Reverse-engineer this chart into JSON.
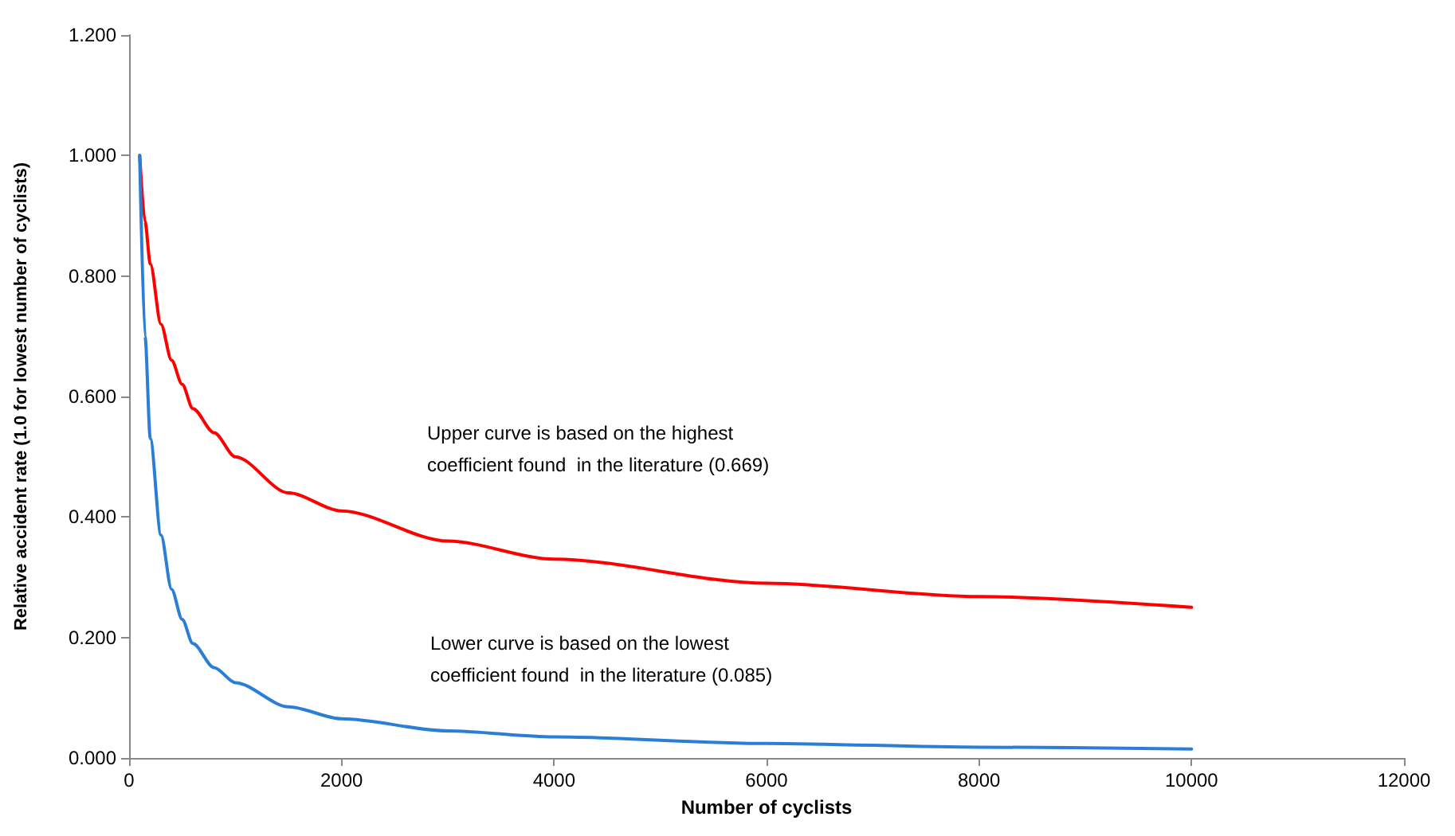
{
  "chart_data": {
    "type": "line",
    "xlabel": "Number of cyclists",
    "ylabel": "Relative accident rate (1.0 for lowest number of cyclists)",
    "annotations": [
      "Upper curve is based on the highest\ncoefficient found  in the literature (0.669)",
      "Lower curve is based on the lowest\ncoefficient found  in the literature (0.085)"
    ],
    "series": [
      {
        "color": "#ff0000",
        "x": [
          100,
          150,
          200,
          300,
          400,
          500,
          600,
          800,
          1000,
          1500,
          2000,
          3000,
          4000,
          6000,
          8000,
          10000
        ],
        "values": [
          1.0,
          0.89,
          0.82,
          0.72,
          0.66,
          0.62,
          0.58,
          0.54,
          0.5,
          0.44,
          0.41,
          0.36,
          0.33,
          0.29,
          0.268,
          0.25
        ]
      },
      {
        "color": "#2a7fd4",
        "x": [
          100,
          150,
          200,
          300,
          400,
          500,
          600,
          800,
          1000,
          1500,
          2000,
          3000,
          4000,
          6000,
          8000,
          10000
        ],
        "values": [
          1.0,
          0.7,
          0.53,
          0.37,
          0.28,
          0.23,
          0.19,
          0.15,
          0.125,
          0.085,
          0.065,
          0.045,
          0.035,
          0.024,
          0.018,
          0.015
        ]
      }
    ],
    "xlim": [
      0,
      12000
    ],
    "xticks": [
      0,
      2000,
      4000,
      6000,
      8000,
      10000,
      12000
    ],
    "ylim": [
      0,
      1.2
    ],
    "yticks": [
      {
        "value": 0,
        "label": "0.000"
      },
      {
        "value": 0.2,
        "label": "0.200"
      },
      {
        "value": 0.4,
        "label": "0.400"
      },
      {
        "value": 0.6,
        "label": "0.600"
      },
      {
        "value": 0.8,
        "label": "0.800"
      },
      {
        "value": 1.0,
        "label": "1.000"
      },
      {
        "value": 1.2,
        "label": "1.200"
      }
    ],
    "marker": "none",
    "line_style": "solid"
  }
}
